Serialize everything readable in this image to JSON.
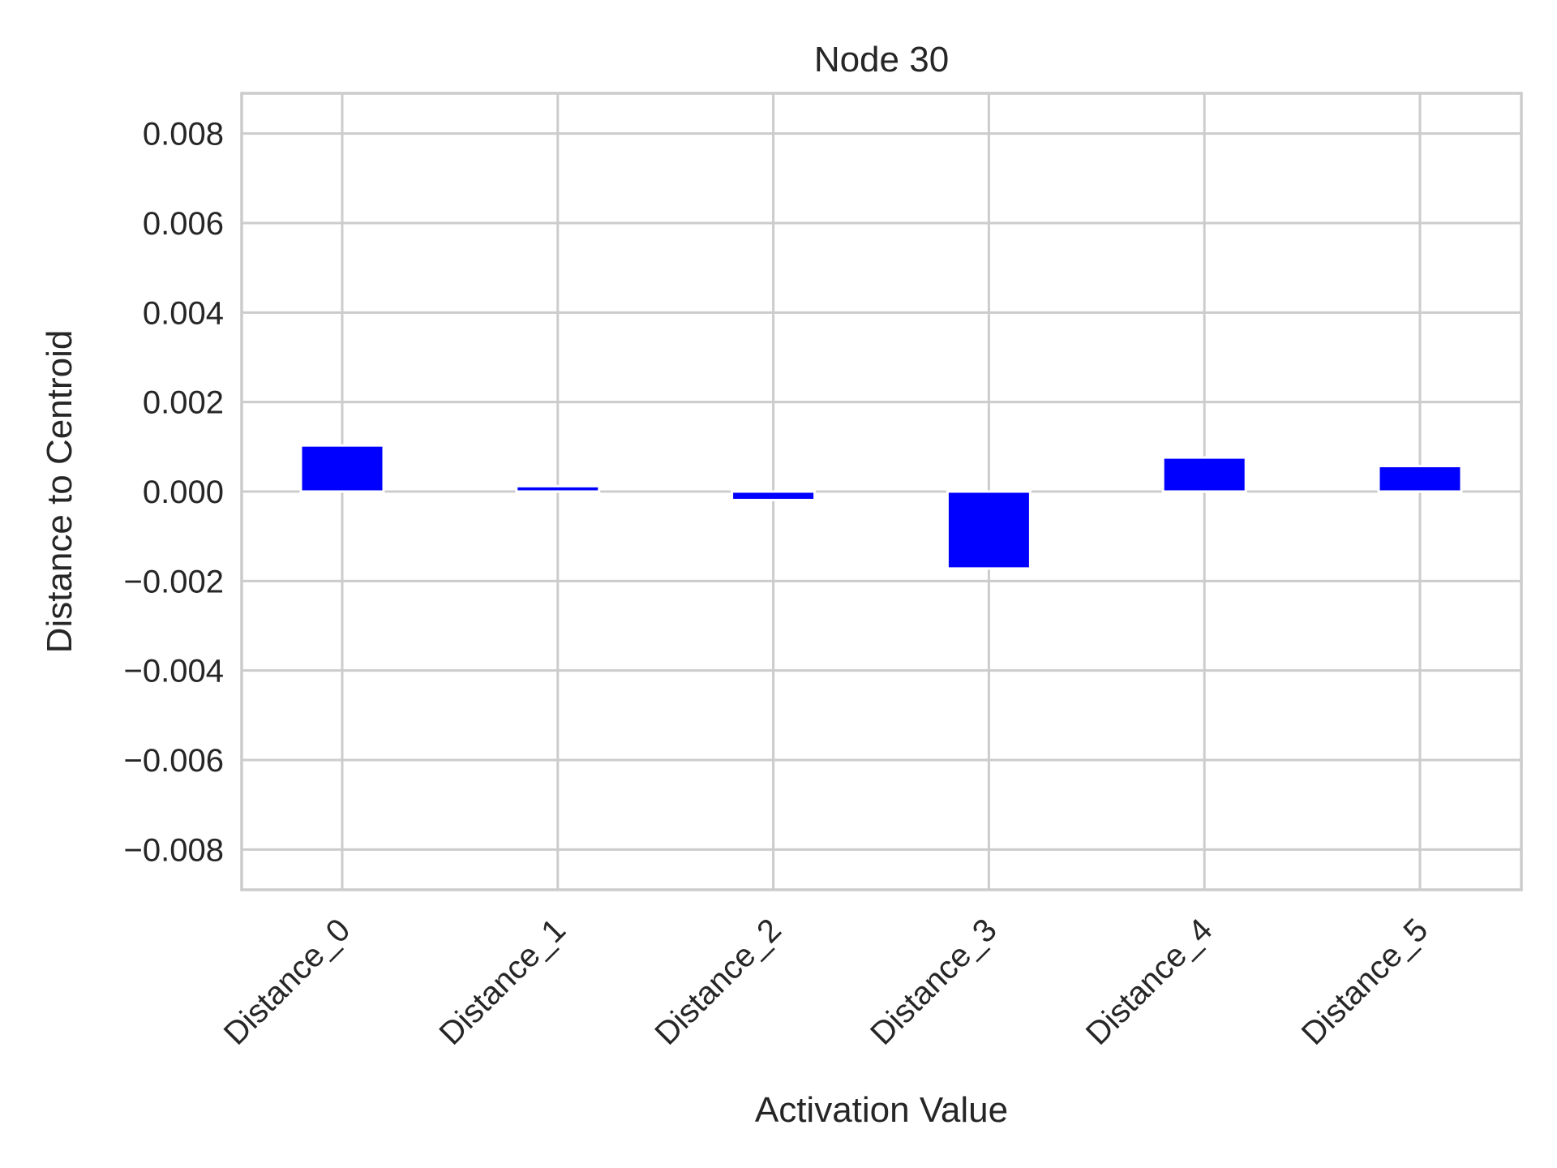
{
  "chart_data": {
    "type": "bar",
    "title": "Node 30",
    "xlabel": "Activation Value",
    "ylabel": "Distance to Centroid",
    "categories": [
      "Distance_0",
      "Distance_1",
      "Distance_2",
      "Distance_3",
      "Distance_4",
      "Distance_5"
    ],
    "values": [
      0.00103,
      0.00012,
      -0.00019,
      -0.00172,
      0.00076,
      0.00057
    ],
    "ylim": [
      -0.0089,
      0.0089
    ],
    "yticks": [
      0.008,
      0.006,
      0.004,
      0.002,
      0.0,
      -0.002,
      -0.004,
      -0.006,
      -0.008
    ],
    "ytick_labels": [
      "0.008",
      "0.006",
      "0.004",
      "0.002",
      "0.000",
      "−0.002",
      "−0.004",
      "−0.006",
      "−0.008"
    ],
    "grid": true,
    "bar_color": "#0000ff",
    "grid_color": "#cccccc"
  }
}
